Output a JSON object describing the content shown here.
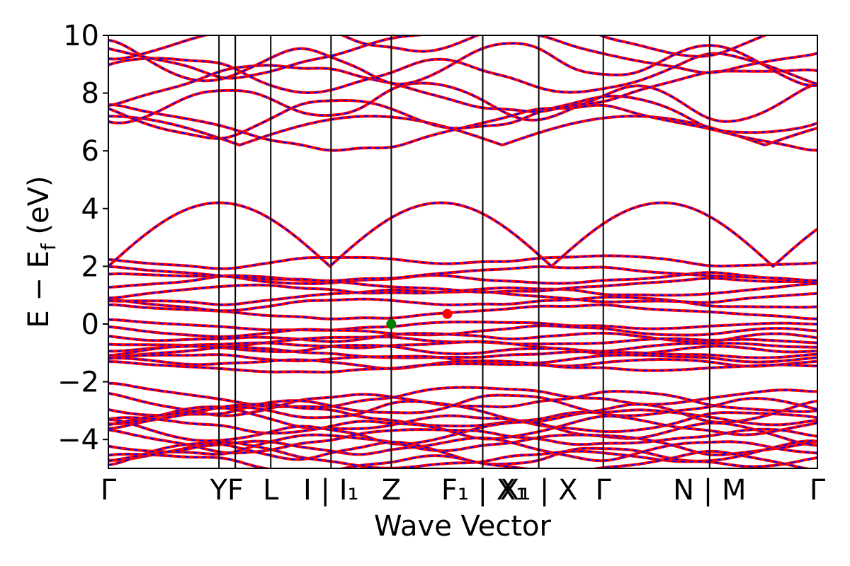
{
  "chart_data": {
    "type": "line",
    "title": "",
    "xlabel": "Wave Vector",
    "ylabel": "E − E_f (eV)",
    "ylabel_main": "E − E",
    "ylabel_sub": "f",
    "ylabel_tail": " (eV)",
    "ylim": [
      -5,
      10
    ],
    "xlim": [
      0,
      1
    ],
    "yticks": [
      -4,
      -2,
      0,
      2,
      4,
      6,
      8,
      10
    ],
    "ytick_labels": [
      "−4",
      "−2",
      "0",
      "2",
      "4",
      "6",
      "8",
      "10"
    ],
    "kpoints": [
      {
        "label": "Γ",
        "x": 0.0
      },
      {
        "label": "Y",
        "x": 0.156
      },
      {
        "label": "F",
        "x": 0.179
      },
      {
        "label": "L",
        "x": 0.229
      },
      {
        "label": "I | I₁",
        "x": 0.314
      },
      {
        "label": "Z",
        "x": 0.399
      },
      {
        "label": "F₁ | X₁",
        "x": 0.528
      },
      {
        "label": "X₁ | X",
        "x": 0.607
      },
      {
        "label": "Γ",
        "x": 0.698
      },
      {
        "label": "N | M",
        "x": 0.848
      },
      {
        "label": "Γ",
        "x": 1.0
      }
    ],
    "kpoint_tick_labels": [
      "Γ",
      "YF",
      "L",
      "I | I₁",
      "Z",
      "F₁ | X₁",
      "X₁ | X",
      "Γ",
      "N | M",
      "Γ"
    ],
    "vbm": {
      "x": 0.399,
      "y": 0.0
    },
    "cbm": {
      "x": 0.478,
      "y": 0.35
    },
    "colors": {
      "bands_solid": "#ff0000",
      "bands_dashed": "#0000ff",
      "vbm": "#008000",
      "cbm": "#ff0000"
    }
  }
}
